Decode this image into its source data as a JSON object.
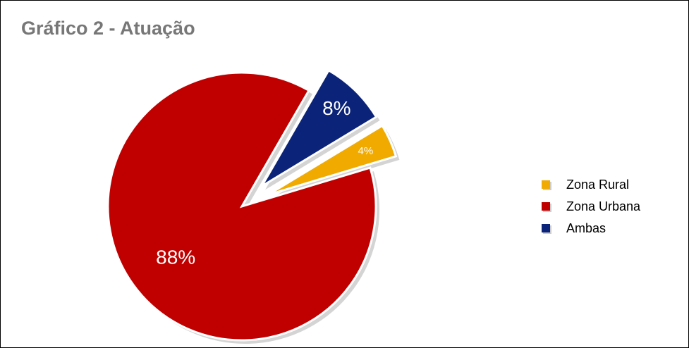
{
  "chart_data": {
    "type": "pie",
    "title": "Gráfico 2 - Atuação",
    "categories": [
      "Zona Rural",
      "Zona Urbana",
      "Ambas"
    ],
    "values": [
      4,
      88,
      8
    ],
    "value_labels": [
      "4%",
      "88%",
      "8%"
    ],
    "colors": [
      "#f0aa00",
      "#c00000",
      "#0b2378"
    ],
    "exploded": [
      true,
      false,
      true
    ],
    "legend": "right"
  }
}
